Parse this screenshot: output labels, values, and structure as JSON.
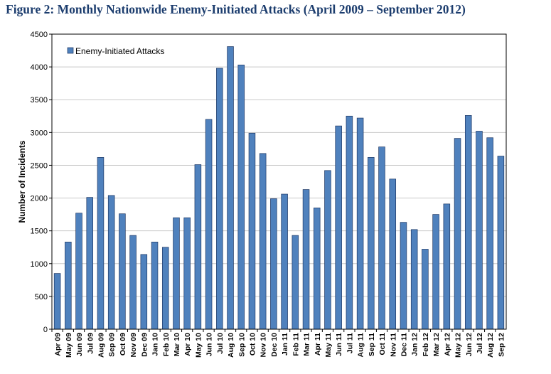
{
  "figure_title": "Figure 2:  Monthly Nationwide Enemy-Initiated Attacks (April 2009 – September 2012)",
  "colors": {
    "bar_fill": "#4f81bd",
    "bar_stroke": "#1f3864",
    "title": "#1c3d6e",
    "grid": "#c8c8c8"
  },
  "chart_data": {
    "type": "bar",
    "title": "Figure 2:  Monthly Nationwide Enemy-Initiated Attacks (April 2009 – September 2012)",
    "xlabel": "",
    "ylabel": "Number of Incidents",
    "ylim": [
      0,
      4500
    ],
    "yticks": [
      0,
      500,
      1000,
      1500,
      2000,
      2500,
      3000,
      3500,
      4000,
      4500
    ],
    "grid": true,
    "legend_position": "top-left",
    "categories": [
      "Apr 09",
      "May 09",
      "Jun 09",
      "Jul 09",
      "Aug 09",
      "Sep 09",
      "Oct 09",
      "Nov 09",
      "Dec 09",
      "Jan 10",
      "Feb 10",
      "Mar 10",
      "Apr 10",
      "May 10",
      "Jun 10",
      "Jul 10",
      "Aug 10",
      "Sep 10",
      "Oct 10",
      "Nov 10",
      "Dec 10",
      "Jan 11",
      "Feb 11",
      "Mar 11",
      "Apr 11",
      "May 11",
      "Jun 11",
      "Jul 11",
      "Aug 11",
      "Sep 11",
      "Oct 11",
      "Nov 11",
      "Dec 11",
      "Jan 12",
      "Feb 12",
      "Mar 12",
      "Apr 12",
      "May 12",
      "Jun 12",
      "Jul 12",
      "Aug 12",
      "Sep 12"
    ],
    "series": [
      {
        "name": "Enemy-Initiated Attacks",
        "values": [
          850,
          1330,
          1770,
          2010,
          2620,
          2040,
          1760,
          1430,
          1140,
          1330,
          1250,
          1700,
          1700,
          2510,
          3200,
          3980,
          4310,
          4030,
          2990,
          2680,
          1990,
          2060,
          1430,
          2130,
          1850,
          2420,
          3100,
          3250,
          3220,
          2620,
          2780,
          2290,
          1630,
          1520,
          1220,
          1750,
          1910,
          2910,
          3260,
          3020,
          2920,
          2640
        ]
      }
    ]
  }
}
